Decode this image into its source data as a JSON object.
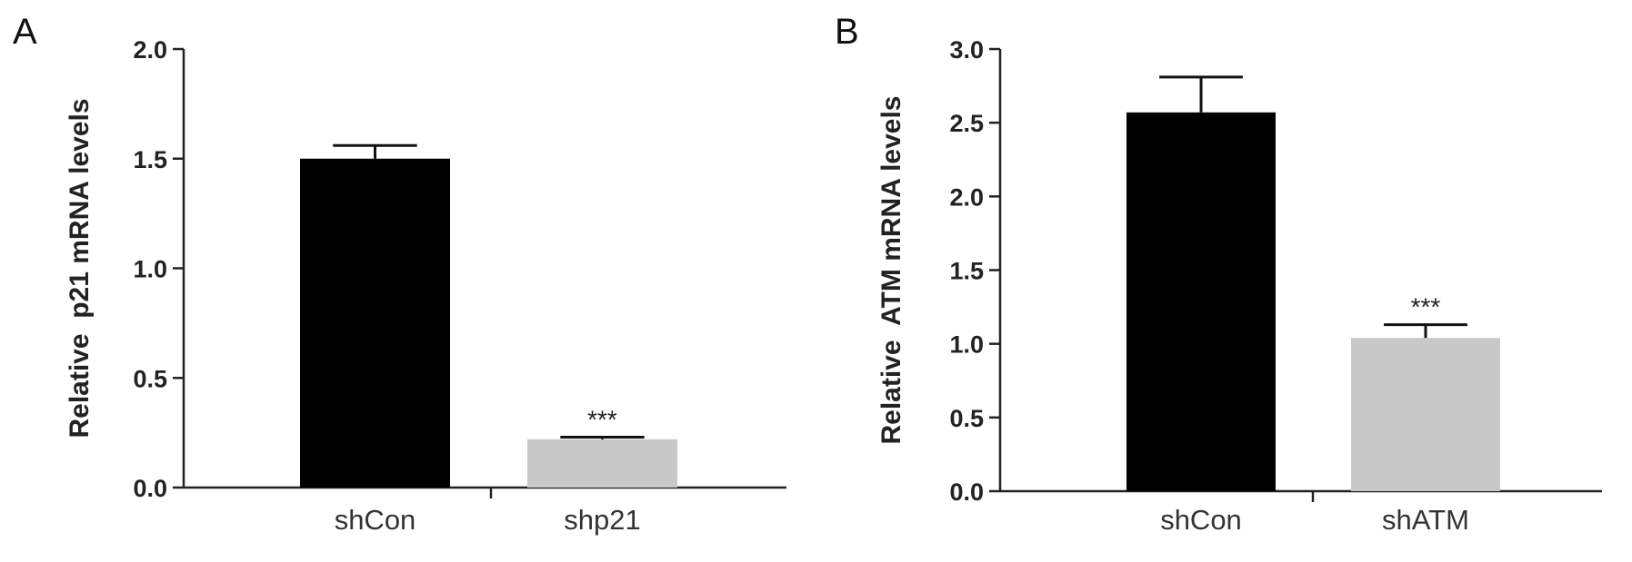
{
  "chart_data": [
    {
      "type": "bar",
      "panel_label": "A",
      "categories": [
        "shCon",
        "shp21"
      ],
      "values": [
        1.5,
        0.22
      ],
      "errors": [
        0.06,
        0.01
      ],
      "bar_colors": [
        "#000000",
        "#c8c8c8"
      ],
      "significance": [
        "",
        "***"
      ],
      "ylabel": "Relative  p21 mRNA levels",
      "ylim": [
        0,
        2.0
      ],
      "yticks": [
        "0.0",
        "0.5",
        "1.0",
        "1.5",
        "2.0"
      ],
      "grid": false
    },
    {
      "type": "bar",
      "panel_label": "B",
      "categories": [
        "shCon",
        "shATM"
      ],
      "values": [
        2.57,
        1.04
      ],
      "errors": [
        0.24,
        0.09
      ],
      "bar_colors": [
        "#000000",
        "#c8c8c8"
      ],
      "significance": [
        "",
        "***"
      ],
      "ylabel": "Relative  ATM mRNA levels",
      "ylim": [
        0,
        3.0
      ],
      "yticks": [
        "0.0",
        "0.5",
        "1.0",
        "1.5",
        "2.0",
        "2.5",
        "3.0"
      ],
      "grid": false
    }
  ]
}
